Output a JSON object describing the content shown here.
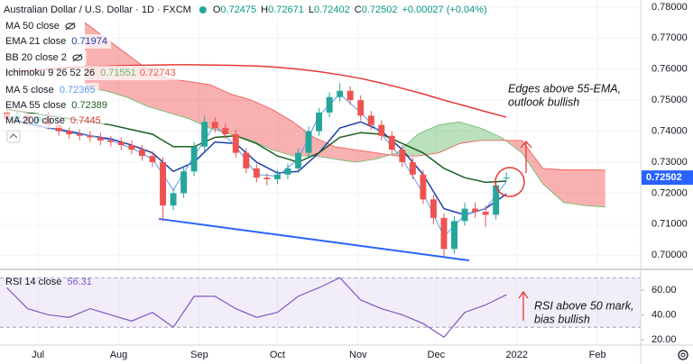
{
  "chart_data": [
    {
      "type": "candlestick",
      "title": "Australian Dollar / U.S. Dollar · 1D · FXCM",
      "ohlc_labels": [
        "O",
        "H",
        "L",
        "C"
      ],
      "change": "+0.00027 (+0.04%)",
      "up_color": "#26a69a",
      "down_color": "#ef5350",
      "x": [
        170,
        174,
        178,
        182,
        186,
        190,
        194,
        198,
        202,
        206,
        210,
        214,
        218,
        222,
        226,
        230,
        234,
        238,
        242,
        246,
        250,
        254,
        258,
        262,
        266,
        270,
        274,
        278,
        282,
        286,
        290,
        294,
        298,
        302,
        306,
        310,
        314,
        318,
        322,
        326,
        330,
        334,
        338,
        342,
        346,
        350,
        354,
        358,
        362
      ],
      "open": [
        0.746,
        0.744,
        0.745,
        0.743,
        0.7445,
        0.742,
        0.74,
        0.739,
        0.7385,
        0.738,
        0.737,
        0.7365,
        0.7355,
        0.734,
        0.732,
        0.73,
        0.716,
        0.72,
        0.727,
        0.735,
        0.743,
        0.741,
        0.739,
        0.733,
        0.728,
        0.725,
        0.7245,
        0.726,
        0.728,
        0.733,
        0.74,
        0.746,
        0.751,
        0.753,
        0.75,
        0.745,
        0.742,
        0.7385,
        0.734,
        0.73,
        0.726,
        0.718,
        0.712,
        0.702,
        0.711,
        0.715,
        0.714,
        0.713,
        0.72475
      ],
      "high": [
        0.7475,
        0.7465,
        0.7465,
        0.746,
        0.746,
        0.7435,
        0.7415,
        0.7405,
        0.74,
        0.7395,
        0.7385,
        0.738,
        0.737,
        0.7355,
        0.7335,
        0.7315,
        0.7215,
        0.7285,
        0.7365,
        0.745,
        0.7445,
        0.7425,
        0.7405,
        0.7345,
        0.7295,
        0.7265,
        0.7275,
        0.7295,
        0.7345,
        0.7415,
        0.7475,
        0.7525,
        0.7555,
        0.7545,
        0.7515,
        0.7465,
        0.7435,
        0.74,
        0.7355,
        0.7315,
        0.7275,
        0.7195,
        0.7135,
        0.7125,
        0.717,
        0.717,
        0.716,
        0.724,
        0.72671
      ],
      "low": [
        0.7425,
        0.7425,
        0.7415,
        0.7415,
        0.7405,
        0.7385,
        0.7375,
        0.737,
        0.7365,
        0.7355,
        0.735,
        0.734,
        0.7325,
        0.7305,
        0.7285,
        0.711,
        0.7145,
        0.7185,
        0.7255,
        0.7335,
        0.7395,
        0.7375,
        0.7315,
        0.7265,
        0.7235,
        0.7225,
        0.723,
        0.7245,
        0.7265,
        0.7315,
        0.7385,
        0.7445,
        0.7495,
        0.7485,
        0.7435,
        0.7405,
        0.737,
        0.7325,
        0.7285,
        0.7245,
        0.7165,
        0.71,
        0.6995,
        0.7005,
        0.7095,
        0.712,
        0.709,
        0.7115,
        0.72402
      ],
      "close": [
        0.744,
        0.745,
        0.743,
        0.7445,
        0.742,
        0.74,
        0.739,
        0.7385,
        0.738,
        0.737,
        0.7365,
        0.7355,
        0.734,
        0.732,
        0.73,
        0.716,
        0.72,
        0.727,
        0.735,
        0.743,
        0.741,
        0.739,
        0.733,
        0.728,
        0.725,
        0.7245,
        0.726,
        0.728,
        0.733,
        0.74,
        0.746,
        0.751,
        0.753,
        0.75,
        0.745,
        0.742,
        0.7385,
        0.734,
        0.73,
        0.726,
        0.718,
        0.712,
        0.702,
        0.711,
        0.715,
        0.714,
        0.713,
        0.7225,
        0.72502
      ],
      "xlim": [
        167.4,
        413.6
      ],
      "xticks": [
        {
          "value": 182,
          "label": "Jul"
        },
        {
          "value": 213,
          "label": "Aug"
        },
        {
          "value": 244,
          "label": "Sep"
        },
        {
          "value": 274,
          "label": "Oct"
        },
        {
          "value": 305,
          "label": "Nov"
        },
        {
          "value": 335,
          "label": "Dec"
        },
        {
          "value": 366,
          "label": "2022"
        },
        {
          "value": 397,
          "label": "Feb"
        }
      ],
      "ylim": [
        0.6957,
        0.7823
      ],
      "yticks": [
        {
          "value": 0.7,
          "label": "0.70000"
        },
        {
          "value": 0.71,
          "label": "0.71000"
        },
        {
          "value": 0.72,
          "label": "0.72000"
        },
        {
          "value": 0.73,
          "label": "0.73000"
        },
        {
          "value": 0.74,
          "label": "0.74000"
        },
        {
          "value": 0.75,
          "label": "0.75000"
        },
        {
          "value": 0.76,
          "label": "0.76000"
        },
        {
          "value": 0.77,
          "label": "0.77000"
        },
        {
          "value": 0.78,
          "label": "0.78000"
        }
      ],
      "grid": true,
      "indicator_x": [
        170,
        178,
        186,
        194,
        202,
        210,
        218,
        226,
        234,
        242,
        250,
        258,
        266,
        274,
        282,
        290,
        298,
        306,
        314,
        322,
        330,
        338,
        346,
        354,
        362
      ],
      "indicators": [
        {
          "name": "MA 50 close",
          "hidden": true
        },
        {
          "name": "EMA 21 close",
          "color": "#1c3faa",
          "values": [
            0.744,
            0.7425,
            0.741,
            0.74,
            0.7385,
            0.7375,
            0.7355,
            0.733,
            0.727,
            0.73,
            0.7365,
            0.736,
            0.73,
            0.7265,
            0.727,
            0.733,
            0.741,
            0.743,
            0.74,
            0.734,
            0.726,
            0.715,
            0.713,
            0.715,
            0.71974
          ]
        },
        {
          "name": "BB 20 close 2",
          "hidden": true
        },
        {
          "name": "Ichimoku 9 26 52 26",
          "type": "cloud",
          "up_color": "#66bb6a",
          "down_color": "#ef5350",
          "x": [
            200,
            208,
            216,
            224,
            232,
            240,
            248,
            256,
            264,
            272,
            280,
            288,
            296,
            304,
            312,
            320,
            328,
            336,
            344,
            352,
            360,
            368,
            376,
            384,
            392,
            400
          ],
          "lead1": [
            0.754,
            0.753,
            0.751,
            0.748,
            0.746,
            0.744,
            0.741,
            0.739,
            0.737,
            0.734,
            0.732,
            0.732,
            0.731,
            0.73,
            0.731,
            0.733,
            0.739,
            0.742,
            0.743,
            0.741,
            0.738,
            0.733,
            0.723,
            0.717,
            0.716,
            0.71551
          ],
          "lead2": [
            0.775,
            0.77,
            0.765,
            0.76,
            0.757,
            0.756,
            0.755,
            0.752,
            0.75,
            0.747,
            0.743,
            0.738,
            0.735,
            0.734,
            0.733,
            0.732,
            0.732,
            0.733,
            0.736,
            0.737,
            0.737,
            0.737,
            0.728,
            0.7275,
            0.7275,
            0.72743
          ]
        },
        {
          "name": "MA 5 close",
          "color": "#5b9cf6",
          "values": [
            0.744,
            0.743,
            0.741,
            0.7395,
            0.7385,
            0.737,
            0.7345,
            0.731,
            0.721,
            0.732,
            0.742,
            0.735,
            0.726,
            0.7255,
            0.731,
            0.745,
            0.752,
            0.746,
            0.739,
            0.731,
            0.72,
            0.706,
            0.713,
            0.715,
            0.72365
          ]
        },
        {
          "name": "EMA 55 close",
          "color": "#1b5e20",
          "values": [
            0.747,
            0.746,
            0.745,
            0.744,
            0.743,
            0.742,
            0.7405,
            0.739,
            0.735,
            0.735,
            0.738,
            0.7385,
            0.736,
            0.732,
            0.73,
            0.733,
            0.738,
            0.7395,
            0.739,
            0.736,
            0.733,
            0.728,
            0.725,
            0.7235,
            0.72389
          ]
        },
        {
          "name": "MA 200 close",
          "color": "#e53935",
          "values": [
            0.759,
            0.7595,
            0.76,
            0.7605,
            0.7608,
            0.761,
            0.7612,
            0.7613,
            0.7614,
            0.7614,
            0.7613,
            0.7612,
            0.761,
            0.7606,
            0.76,
            0.7592,
            0.7582,
            0.757,
            0.7555,
            0.7538,
            0.752,
            0.75,
            0.7482,
            0.7463,
            0.7445
          ]
        }
      ],
      "trendline": {
        "color": "#2962ff",
        "x": [
          228.5,
          347.7
        ],
        "y": [
          0.7117,
          0.6983
        ]
      },
      "annotation": [
        "Edges above 55-EMA,",
        "outlook bullish"
      ]
    },
    {
      "type": "line",
      "title": "RSI 14 close",
      "color": "#7e57c2",
      "x": [
        170,
        178,
        186,
        194,
        202,
        210,
        218,
        226,
        234,
        242,
        250,
        258,
        266,
        274,
        282,
        290,
        298,
        306,
        314,
        322,
        330,
        338,
        346,
        354,
        362
      ],
      "values": [
        62,
        45,
        40,
        38,
        45,
        40,
        35,
        42,
        30,
        55,
        55,
        45,
        38,
        42,
        55,
        62,
        70,
        52,
        45,
        40,
        33,
        22,
        42,
        48,
        56.31
      ],
      "ylim": [
        15.6,
        76
      ],
      "yticks": [
        {
          "value": 20,
          "label": "20.00"
        },
        {
          "value": 40,
          "label": "40.00"
        },
        {
          "value": 60,
          "label": "60.00"
        }
      ],
      "bands": [
        30,
        70
      ],
      "annotation": [
        "RSI above 50 mark,",
        "bias bullish"
      ]
    }
  ]
}
